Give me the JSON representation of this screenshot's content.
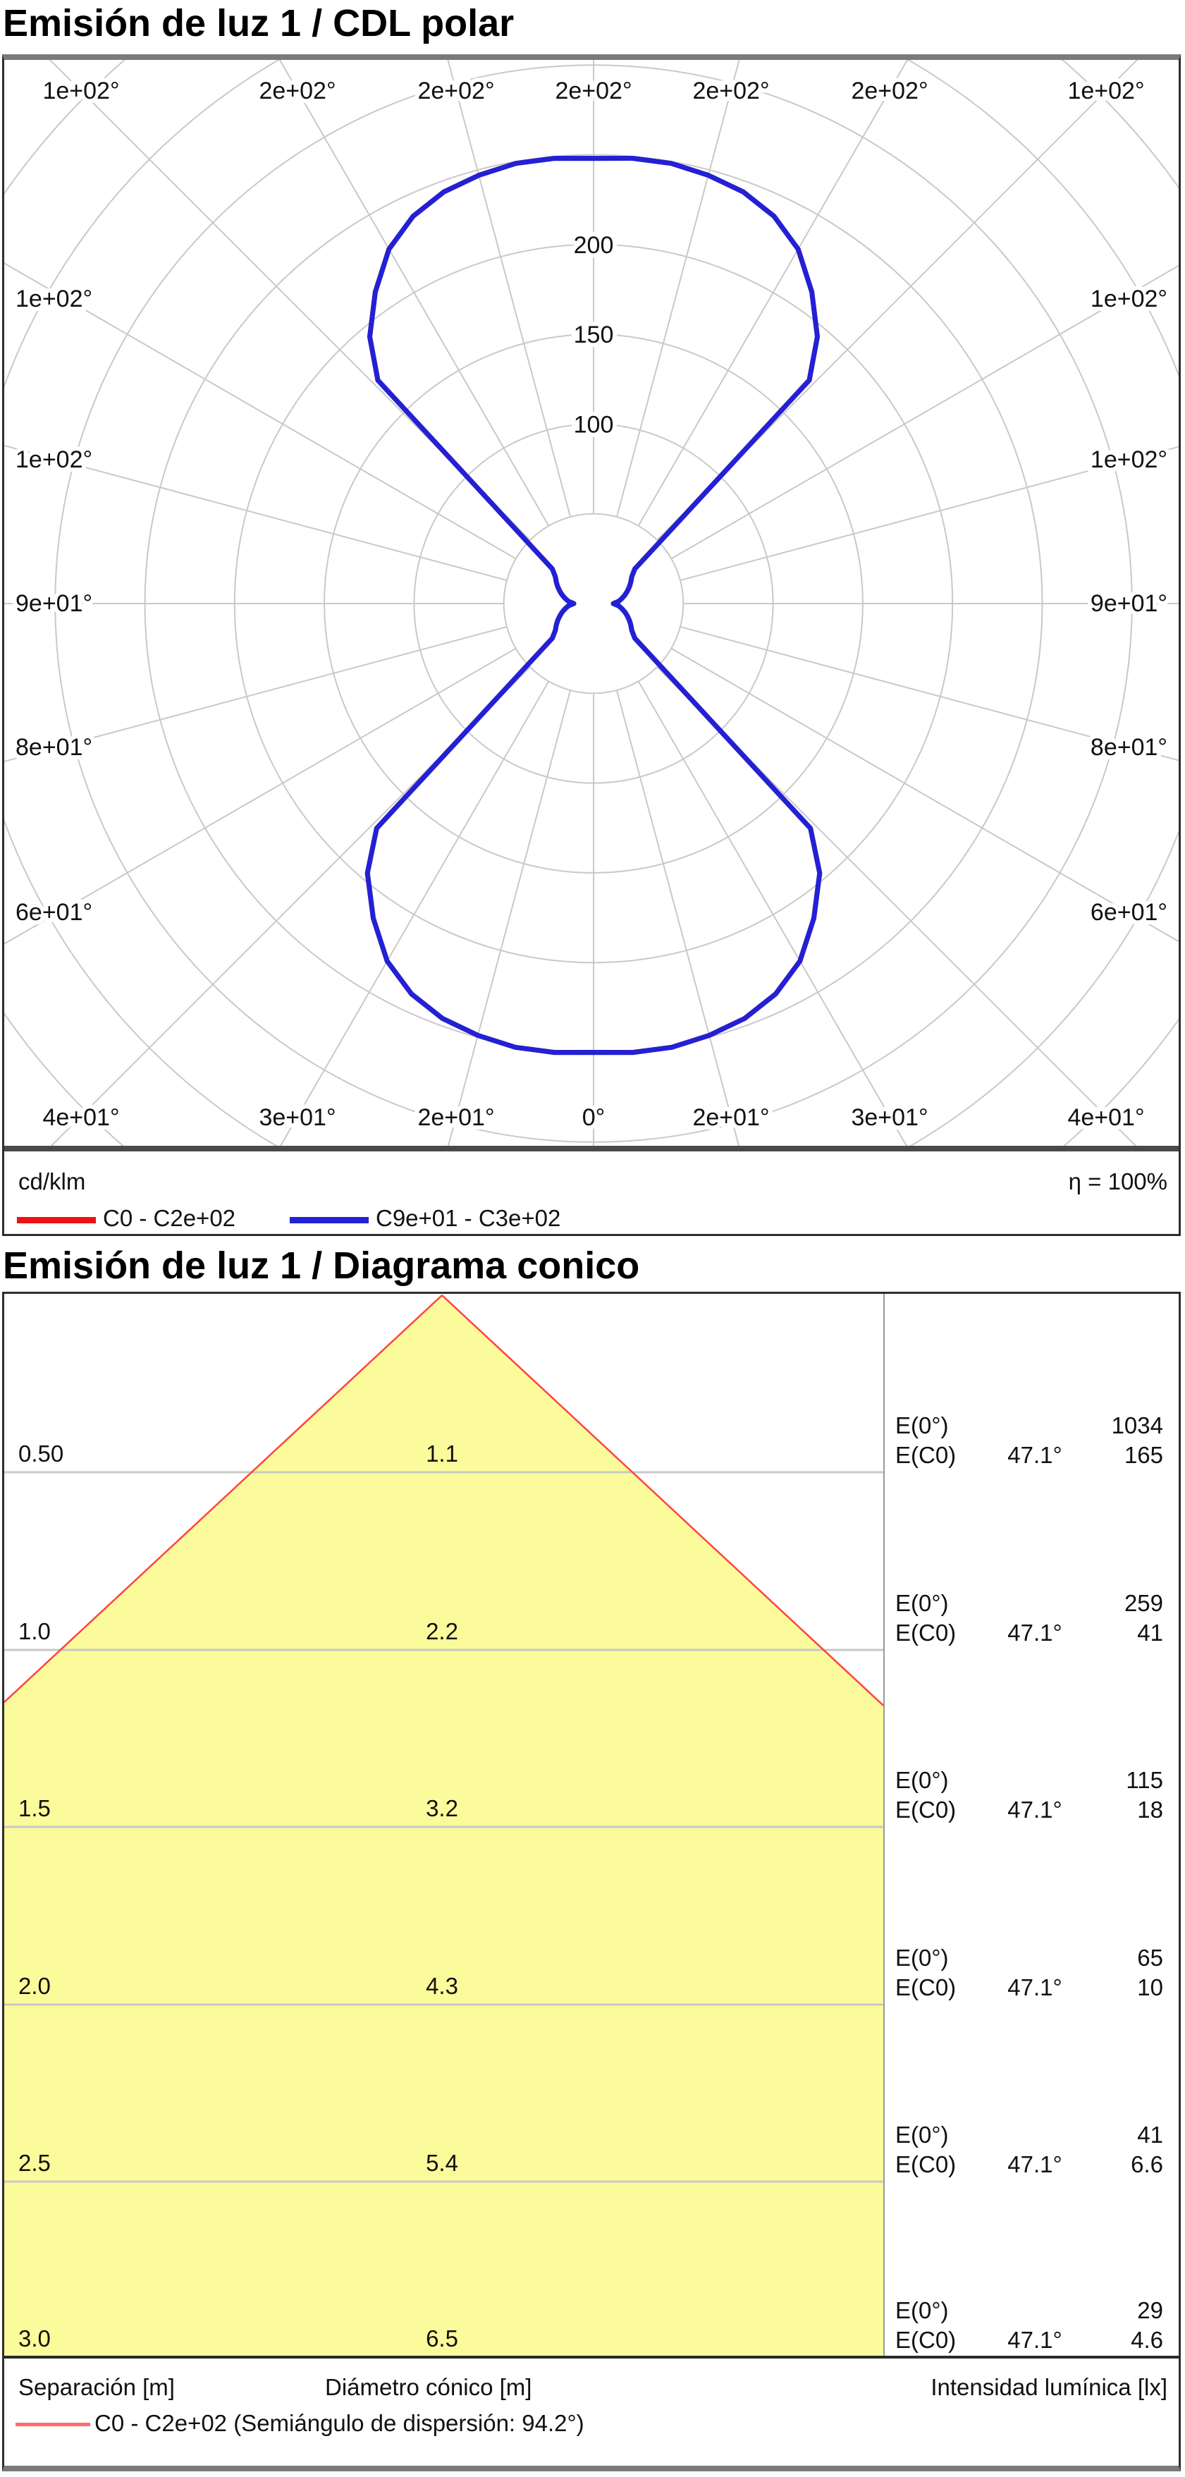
{
  "polar": {
    "title": "Emisión de luz 1 / CDL polar",
    "unit_label": "cd/klm",
    "efficiency_label": "η = 100%",
    "legend": [
      {
        "label": "C0 - C2e+02",
        "color": "#ee1111"
      },
      {
        "label": "C9e+01 - C3e+02",
        "color": "#2121d6"
      }
    ]
  },
  "cone": {
    "title": "Emisión de luz 1 / Diagrama conico",
    "footer": {
      "separation": "Separación [m]",
      "diameter": "Diámetro cónico [m]",
      "intensity": "Intensidad lumínica [lx]"
    },
    "legend": {
      "label": "C0 - C2e+02 (Semiángulo de dispersión: 94.2°)",
      "color": "#ff6b6b"
    }
  },
  "chart_data": [
    {
      "id": "cdl-polar",
      "type": "line",
      "coordinate_system": "polar",
      "units": "cd/klm",
      "rings": [
        50,
        100,
        150,
        200,
        250,
        300,
        350,
        400
      ],
      "ring_labels": [
        {
          "value": 100,
          "text": "100"
        },
        {
          "value": 150,
          "text": "150"
        },
        {
          "value": 200,
          "text": "200"
        }
      ],
      "spoke_step_deg": 15,
      "angle_labels": {
        "top": [
          "1e+02°",
          "2e+02°",
          "2e+02°",
          "2e+02°",
          "2e+02°",
          "2e+02°",
          "1e+02°"
        ],
        "bottom": [
          "4e+01°",
          "3e+01°",
          "2e+01°",
          "0°",
          "2e+01°",
          "3e+01°",
          "4e+01°"
        ],
        "left": [
          "1e+02°",
          "1e+02°",
          "9e+01°",
          "8e+01°",
          "6e+01°"
        ],
        "right": [
          "1e+02°",
          "1e+02°",
          "9e+01°",
          "8e+01°",
          "6e+01°"
        ]
      },
      "grid_color": "#c9c9c9",
      "series": [
        {
          "name": "C0 - C2e+02",
          "color": "#ee1111"
        },
        {
          "name": "C9e+01 - C3e+02",
          "color": "#2121d6"
        }
      ],
      "curve_gamma_intensity": [
        [
          0,
          250
        ],
        [
          5,
          251
        ],
        [
          10,
          251
        ],
        [
          15,
          249
        ],
        [
          20,
          246
        ],
        [
          25,
          240
        ],
        [
          30,
          230
        ],
        [
          35,
          214
        ],
        [
          40,
          196
        ],
        [
          44,
          174
        ],
        [
          50,
          30
        ],
        [
          55,
          26
        ],
        [
          60,
          24
        ],
        [
          65,
          22
        ],
        [
          70,
          20
        ],
        [
          75,
          18
        ],
        [
          80,
          16
        ],
        [
          85,
          14
        ],
        [
          90,
          11
        ],
        [
          95,
          14
        ],
        [
          100,
          16
        ],
        [
          105,
          18
        ],
        [
          110,
          20
        ],
        [
          115,
          22
        ],
        [
          120,
          24
        ],
        [
          125,
          26
        ],
        [
          130,
          30
        ],
        [
          136,
          173
        ],
        [
          140,
          194
        ],
        [
          145,
          212
        ],
        [
          150,
          228
        ],
        [
          155,
          238
        ],
        [
          160,
          244
        ],
        [
          165,
          247
        ],
        [
          170,
          249
        ],
        [
          175,
          249
        ],
        [
          180,
          248
        ]
      ]
    },
    {
      "id": "diagrama-conico",
      "type": "area",
      "beam_semiangle_deg": 47.1,
      "beam_full_angle_text": "94.2°",
      "separation_step_m": 0.5,
      "rows": [
        {
          "separation_m": "0.50",
          "cone_diameter_m": "1.1",
          "e0_lx": "1034",
          "ec0_lx": "165"
        },
        {
          "separation_m": "1.0",
          "cone_diameter_m": "2.2",
          "e0_lx": "259",
          "ec0_lx": "41"
        },
        {
          "separation_m": "1.5",
          "cone_diameter_m": "3.2",
          "e0_lx": "115",
          "ec0_lx": "18"
        },
        {
          "separation_m": "2.0",
          "cone_diameter_m": "4.3",
          "e0_lx": "65",
          "ec0_lx": "10"
        },
        {
          "separation_m": "2.5",
          "cone_diameter_m": "5.4",
          "e0_lx": "41",
          "ec0_lx": "6.6"
        },
        {
          "separation_m": "3.0",
          "cone_diameter_m": "6.5",
          "e0_lx": "29",
          "ec0_lx": "4.6"
        }
      ],
      "row_labels": {
        "e0": "E(0°)",
        "ec0": "E(C0)",
        "angle": "47.1°"
      },
      "colors": {
        "fill": "#fbfb9b",
        "edge": "#ff4343",
        "grid": "#c8c8c8",
        "axis": "#2b2b2b",
        "divider": "#9a9a9a"
      }
    }
  ]
}
